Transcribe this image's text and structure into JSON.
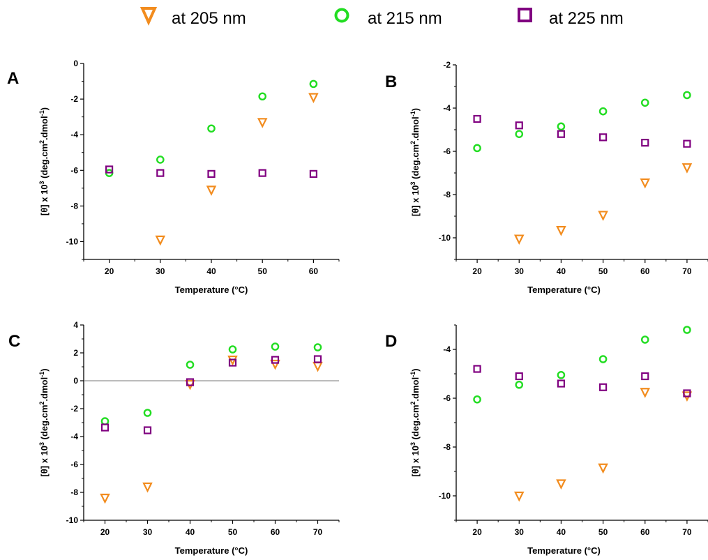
{
  "legend": {
    "entries": [
      {
        "label": "at 205 nm",
        "marker": "triangle-down",
        "color": "#f28c1e"
      },
      {
        "label": "at 215 nm",
        "marker": "circle",
        "color": "#22dd22"
      },
      {
        "label": "at 225 nm",
        "marker": "square",
        "color": "#800080"
      }
    ]
  },
  "chart_data": [
    {
      "type": "scatter",
      "panel": "A",
      "xlabel": "Temperature (°C)",
      "ylabel_parts": [
        "[θ] x 10",
        "3",
        " (deg.cm",
        "2",
        ".dmol",
        "-1",
        ")"
      ],
      "xlim": [
        15,
        65
      ],
      "ylim": [
        -11,
        0
      ],
      "xticks": [
        20,
        30,
        40,
        50,
        60
      ],
      "yticks": [
        0,
        -2,
        -4,
        -6,
        -8,
        -10
      ],
      "zero_line": false,
      "series": [
        {
          "name": "at 205 nm",
          "x": [
            30,
            40,
            50,
            60
          ],
          "y": [
            -9.9,
            -7.1,
            -3.3,
            -1.9
          ]
        },
        {
          "name": "at 215 nm",
          "x": [
            20,
            30,
            40,
            50,
            60
          ],
          "y": [
            -6.15,
            -5.4,
            -3.65,
            -1.85,
            -1.15
          ]
        },
        {
          "name": "at 225 nm",
          "x": [
            20,
            30,
            40,
            50,
            60
          ],
          "y": [
            -5.95,
            -6.15,
            -6.2,
            -6.15,
            -6.2
          ]
        }
      ]
    },
    {
      "type": "scatter",
      "panel": "B",
      "xlabel": "Temperature (°C)",
      "ylabel_parts": [
        "[θ] x 10",
        "3",
        " (deg.cm",
        "2",
        ".dmol",
        "-1",
        ")"
      ],
      "xlim": [
        15,
        75
      ],
      "ylim": [
        -11,
        -2
      ],
      "xticks": [
        20,
        30,
        40,
        50,
        60,
        70
      ],
      "yticks": [
        -2,
        -4,
        -6,
        -8,
        -10
      ],
      "zero_line": false,
      "series": [
        {
          "name": "at 205 nm",
          "x": [
            30,
            40,
            50,
            60,
            70
          ],
          "y": [
            -10.05,
            -9.65,
            -8.95,
            -7.45,
            -6.75
          ]
        },
        {
          "name": "at 215 nm",
          "x": [
            20,
            30,
            40,
            50,
            60,
            70
          ],
          "y": [
            -5.85,
            -5.2,
            -4.85,
            -4.15,
            -3.75,
            -3.4
          ]
        },
        {
          "name": "at 225 nm",
          "x": [
            20,
            30,
            40,
            50,
            60,
            70
          ],
          "y": [
            -4.5,
            -4.8,
            -5.2,
            -5.35,
            -5.6,
            -5.65
          ]
        }
      ]
    },
    {
      "type": "scatter",
      "panel": "C",
      "xlabel": "Temperature (°C)",
      "ylabel_parts": [
        "[θ] x 10",
        "3",
        " (deg.cm",
        "2",
        ".dmol",
        "-1",
        ")"
      ],
      "xlim": [
        15,
        75
      ],
      "ylim": [
        -10,
        4
      ],
      "xticks": [
        20,
        30,
        40,
        50,
        60,
        70
      ],
      "yticks": [
        4,
        2,
        0,
        -2,
        -4,
        -6,
        -8,
        -10
      ],
      "zero_line": true,
      "series": [
        {
          "name": "at 205 nm",
          "x": [
            20,
            30,
            40,
            50,
            60,
            70
          ],
          "y": [
            -8.4,
            -7.6,
            -0.25,
            1.5,
            1.2,
            1.05
          ]
        },
        {
          "name": "at 215 nm",
          "x": [
            20,
            30,
            40,
            50,
            60,
            70
          ],
          "y": [
            -2.9,
            -2.3,
            1.15,
            2.25,
            2.45,
            2.4
          ]
        },
        {
          "name": "at 225 nm",
          "x": [
            20,
            30,
            40,
            50,
            60,
            70
          ],
          "y": [
            -3.35,
            -3.55,
            -0.1,
            1.3,
            1.5,
            1.55
          ]
        }
      ]
    },
    {
      "type": "scatter",
      "panel": "D",
      "xlabel": "Temperature (°C)",
      "ylabel_parts": [
        "[θ] x 10",
        "3",
        " (deg.cm",
        "2",
        ".dmol",
        "-1",
        ")"
      ],
      "xlim": [
        15,
        75
      ],
      "ylim": [
        -11,
        -3
      ],
      "xticks": [
        20,
        30,
        40,
        50,
        60,
        70
      ],
      "yticks": [
        -4,
        -6,
        -8,
        -10
      ],
      "zero_line": false,
      "series": [
        {
          "name": "at 205 nm",
          "x": [
            30,
            40,
            50,
            60,
            70
          ],
          "y": [
            -10.0,
            -9.5,
            -8.85,
            -5.75,
            -5.9
          ]
        },
        {
          "name": "at 215 nm",
          "x": [
            20,
            30,
            40,
            50,
            60,
            70
          ],
          "y": [
            -6.05,
            -5.45,
            -5.05,
            -4.4,
            -3.6,
            -3.2
          ]
        },
        {
          "name": "at 225 nm",
          "x": [
            20,
            30,
            40,
            50,
            60,
            70
          ],
          "y": [
            -4.8,
            -5.1,
            -5.4,
            -5.55,
            -5.1,
            -5.8
          ]
        }
      ]
    }
  ]
}
